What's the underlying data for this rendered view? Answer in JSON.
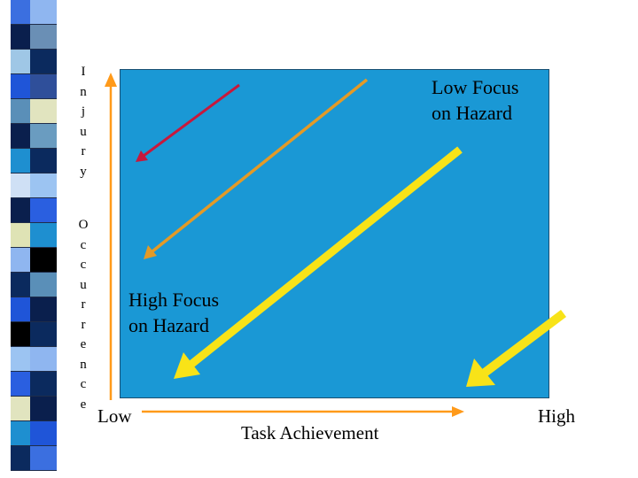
{
  "slide": {
    "x_axis": {
      "label": "Task Achievement",
      "low": "Low",
      "high": "High"
    },
    "y_axis": {
      "word1": "Injury",
      "word2": "Occurrence"
    },
    "annotations": {
      "low_focus": "Low Focus\non Hazard",
      "high_focus": "High Focus\non Hazard"
    },
    "colors": {
      "panel": "#1a98d5",
      "axis_arrow": "#ff9a1a",
      "arrow_red": "#c8183c",
      "arrow_orange": "#e49a26",
      "arrow_yellow": "#f8e318"
    },
    "arrows": [
      "red-arrow",
      "orange-arrow",
      "yellow-long-arrow",
      "yellow-short-arrow"
    ]
  }
}
